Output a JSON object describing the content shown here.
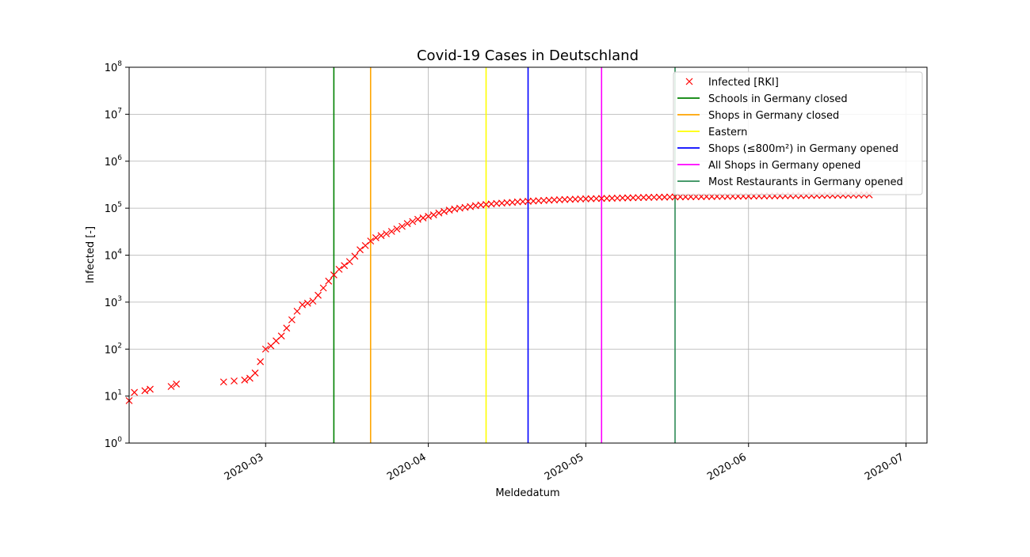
{
  "chart_data": {
    "type": "scatter",
    "title": "Covid-19 Cases in Deutschland",
    "xlabel": "Meldedatum",
    "ylabel": "Infected [-]",
    "yscale": "log",
    "ylim": [
      1,
      100000000
    ],
    "xlim": [
      "2020-02-04",
      "2020-07-05"
    ],
    "grid": true,
    "legend_position": "top-right",
    "x_ticks": [
      {
        "date": "2020-03-01",
        "label": "2020-03"
      },
      {
        "date": "2020-04-01",
        "label": "2020-04"
      },
      {
        "date": "2020-05-01",
        "label": "2020-05"
      },
      {
        "date": "2020-06-01",
        "label": "2020-06"
      },
      {
        "date": "2020-07-01",
        "label": "2020-07"
      }
    ],
    "y_ticks": [
      {
        "value": 1,
        "exp": "0"
      },
      {
        "value": 10,
        "exp": "1"
      },
      {
        "value": 100,
        "exp": "2"
      },
      {
        "value": 1000,
        "exp": "3"
      },
      {
        "value": 10000,
        "exp": "4"
      },
      {
        "value": 100000,
        "exp": "5"
      },
      {
        "value": 1000000,
        "exp": "6"
      },
      {
        "value": 10000000,
        "exp": "7"
      },
      {
        "value": 100000000,
        "exp": "8"
      }
    ],
    "y_tick_base": "10",
    "series": [
      {
        "name": "Infected [RKI]",
        "color": "#ff0000",
        "marker": "x",
        "points": [
          [
            "2020-02-04",
            8
          ],
          [
            "2020-02-05",
            12
          ],
          [
            "2020-02-07",
            13
          ],
          [
            "2020-02-08",
            14
          ],
          [
            "2020-02-12",
            16
          ],
          [
            "2020-02-13",
            18
          ],
          [
            "2020-02-22",
            20
          ],
          [
            "2020-02-24",
            21
          ],
          [
            "2020-02-26",
            22
          ],
          [
            "2020-02-27",
            24
          ],
          [
            "2020-02-28",
            31
          ],
          [
            "2020-02-29",
            54
          ],
          [
            "2020-03-01",
            100
          ],
          [
            "2020-03-02",
            117
          ],
          [
            "2020-03-03",
            150
          ],
          [
            "2020-03-04",
            190
          ],
          [
            "2020-03-05",
            280
          ],
          [
            "2020-03-06",
            420
          ],
          [
            "2020-03-07",
            640
          ],
          [
            "2020-03-08",
            880
          ],
          [
            "2020-03-09",
            950
          ],
          [
            "2020-03-10",
            1050
          ],
          [
            "2020-03-11",
            1400
          ],
          [
            "2020-03-12",
            2000
          ],
          [
            "2020-03-13",
            2800
          ],
          [
            "2020-03-14",
            3800
          ],
          [
            "2020-03-15",
            5000
          ],
          [
            "2020-03-16",
            6000
          ],
          [
            "2020-03-17",
            7300
          ],
          [
            "2020-03-18",
            9500
          ],
          [
            "2020-03-19",
            13000
          ],
          [
            "2020-03-20",
            16000
          ],
          [
            "2020-03-21",
            20000
          ],
          [
            "2020-03-22",
            23500
          ],
          [
            "2020-03-23",
            26000
          ],
          [
            "2020-03-24",
            28500
          ],
          [
            "2020-03-25",
            32000
          ],
          [
            "2020-03-26",
            36000
          ],
          [
            "2020-03-27",
            41000
          ],
          [
            "2020-03-28",
            47000
          ],
          [
            "2020-03-29",
            52000
          ],
          [
            "2020-03-30",
            58000
          ],
          [
            "2020-03-31",
            62000
          ],
          [
            "2020-04-01",
            67000
          ],
          [
            "2020-04-02",
            72000
          ],
          [
            "2020-04-03",
            79000
          ],
          [
            "2020-04-04",
            85000
          ],
          [
            "2020-04-05",
            91000
          ],
          [
            "2020-04-06",
            96000
          ],
          [
            "2020-04-07",
            100000
          ],
          [
            "2020-04-08",
            104000
          ],
          [
            "2020-04-09",
            108000
          ],
          [
            "2020-04-10",
            113000
          ],
          [
            "2020-04-11",
            117000
          ],
          [
            "2020-04-12",
            120000
          ],
          [
            "2020-04-13",
            123000
          ],
          [
            "2020-04-14",
            126000
          ],
          [
            "2020-04-15",
            128000
          ],
          [
            "2020-04-16",
            131000
          ],
          [
            "2020-04-17",
            133000
          ],
          [
            "2020-04-18",
            136000
          ],
          [
            "2020-04-19",
            138000
          ],
          [
            "2020-04-20",
            140000
          ],
          [
            "2020-04-21",
            142000
          ],
          [
            "2020-04-22",
            144000
          ],
          [
            "2020-04-23",
            146000
          ],
          [
            "2020-04-24",
            148000
          ],
          [
            "2020-04-25",
            150000
          ],
          [
            "2020-04-26",
            151000
          ],
          [
            "2020-04-27",
            153000
          ],
          [
            "2020-04-28",
            154000
          ],
          [
            "2020-04-29",
            155000
          ],
          [
            "2020-04-30",
            157000
          ],
          [
            "2020-05-01",
            158000
          ],
          [
            "2020-05-02",
            159000
          ],
          [
            "2020-05-03",
            160000
          ],
          [
            "2020-05-04",
            161000
          ],
          [
            "2020-05-05",
            162000
          ],
          [
            "2020-05-06",
            163000
          ],
          [
            "2020-05-07",
            164000
          ],
          [
            "2020-05-08",
            165000
          ],
          [
            "2020-05-09",
            166000
          ],
          [
            "2020-05-10",
            167000
          ],
          [
            "2020-05-11",
            168000
          ],
          [
            "2020-05-12",
            169000
          ],
          [
            "2020-05-13",
            170000
          ],
          [
            "2020-05-14",
            170500
          ],
          [
            "2020-05-15",
            171500
          ],
          [
            "2020-05-16",
            172000
          ],
          [
            "2020-05-17",
            173000
          ],
          [
            "2020-05-18",
            173500
          ],
          [
            "2020-05-19",
            174000
          ],
          [
            "2020-05-20",
            174500
          ],
          [
            "2020-05-21",
            175000
          ],
          [
            "2020-05-22",
            175500
          ],
          [
            "2020-05-23",
            176000
          ],
          [
            "2020-05-24",
            176500
          ],
          [
            "2020-05-25",
            177000
          ],
          [
            "2020-05-26",
            177500
          ],
          [
            "2020-05-27",
            178000
          ],
          [
            "2020-05-28",
            178500
          ],
          [
            "2020-05-29",
            179000
          ],
          [
            "2020-05-30",
            179500
          ],
          [
            "2020-05-31",
            180000
          ],
          [
            "2020-06-01",
            180500
          ],
          [
            "2020-06-02",
            181000
          ],
          [
            "2020-06-03",
            181500
          ],
          [
            "2020-06-04",
            182000
          ],
          [
            "2020-06-05",
            182500
          ],
          [
            "2020-06-06",
            183000
          ],
          [
            "2020-06-07",
            183500
          ],
          [
            "2020-06-08",
            184000
          ],
          [
            "2020-06-09",
            184500
          ],
          [
            "2020-06-10",
            185000
          ],
          [
            "2020-06-11",
            185500
          ],
          [
            "2020-06-12",
            186000
          ],
          [
            "2020-06-13",
            186500
          ],
          [
            "2020-06-14",
            187000
          ],
          [
            "2020-06-15",
            187500
          ],
          [
            "2020-06-16",
            188000
          ],
          [
            "2020-06-17",
            188500
          ],
          [
            "2020-06-18",
            189000
          ],
          [
            "2020-06-19",
            189500
          ],
          [
            "2020-06-20",
            190000
          ],
          [
            "2020-06-21",
            190500
          ],
          [
            "2020-06-22",
            191000
          ],
          [
            "2020-06-23",
            191500
          ],
          [
            "2020-06-24",
            192000
          ]
        ]
      }
    ],
    "events": [
      {
        "name": "Schools in Germany closed",
        "date": "2020-03-14",
        "color": "#008000"
      },
      {
        "name": "Shops in Germany closed",
        "date": "2020-03-21",
        "color": "#ffa500"
      },
      {
        "name": "Eastern",
        "date": "2020-04-12",
        "color": "#ffff00"
      },
      {
        "name": "Shops (≤800m²) in Germany opened",
        "date": "2020-04-20",
        "color": "#0000ff"
      },
      {
        "name": "All Shops in Germany opened",
        "date": "2020-05-04",
        "color": "#ff00ff"
      },
      {
        "name": "Most Restaurants in Germany opened",
        "date": "2020-05-18",
        "color": "#2e8b57"
      }
    ]
  }
}
